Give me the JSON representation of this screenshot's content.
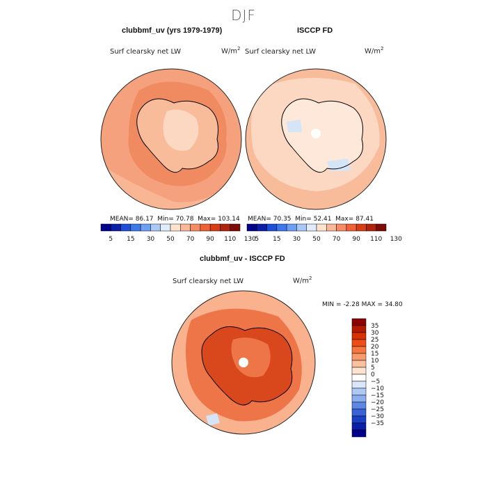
{
  "season": "DJF",
  "panels": [
    {
      "title": "clubbmf_uv (yrs 1979-1979)",
      "variable": "Surf clearsky net LW",
      "units": "W/m",
      "units_exp": "2",
      "stats": {
        "mean_label": "MEAN=",
        "mean": "86.17",
        "min_label": "Min=",
        "min": "70.78",
        "max_label": "Max=",
        "max": "103.14"
      }
    },
    {
      "title": "ISCCP FD",
      "variable": "Surf clearsky net LW",
      "units": "W/m",
      "units_exp": "2",
      "stats": {
        "mean_label": "MEAN=",
        "mean": "70.35",
        "min_label": "Min=",
        "min": "52.41",
        "max_label": "Max=",
        "max": "87.41"
      }
    }
  ],
  "shared_colorbar": {
    "colors": [
      "#00008b",
      "#0a1fa8",
      "#1e4fd6",
      "#3c78e8",
      "#6d9ff2",
      "#a9c8f5",
      "#e0ecfb",
      "#fde2cc",
      "#f9b89a",
      "#f58b64",
      "#ee6137",
      "#d73d15",
      "#b0230c",
      "#7a0b05"
    ],
    "tick_labels": [
      "5",
      "15",
      "30",
      "50",
      "70",
      "90",
      "110",
      "130"
    ]
  },
  "diff_panel": {
    "title": "clubbmf_uv - ISCCP FD",
    "variable": "Surf clearsky net LW",
    "units": "W/m",
    "units_exp": "2",
    "stats": {
      "min_label": "MIN =",
      "min": "-2.28",
      "max_label": "MAX =",
      "max": "34.80"
    }
  },
  "diff_colorbar": {
    "colors": [
      "#8b0000",
      "#b51a00",
      "#d63300",
      "#f04d14",
      "#f7763f",
      "#fa9a6a",
      "#fbc19e",
      "#fde3d0",
      "#ffffff",
      "#d9e6fb",
      "#aec8f5",
      "#8aaef0",
      "#5d86e6",
      "#3763d8",
      "#1a3fc4",
      "#0a1fa8",
      "#00008b"
    ],
    "tick_labels": [
      "35",
      "30",
      "25",
      "20",
      "15",
      "10",
      "5",
      "0",
      "−5",
      "−10",
      "−15",
      "−20",
      "−25",
      "−30",
      "−35"
    ]
  },
  "map_colors": {
    "ocean_high": "#f6a17e",
    "ocean_mid": "#f9bc9b",
    "ocean_light": "#fcd8c2",
    "land_low": "#fde8da",
    "blue_patch": "#d5e4f7",
    "diff_dark": "#d9471c",
    "diff_mid": "#ee7548",
    "diff_light": "#f9b18e",
    "coast": "#000000",
    "pole": "#ffffff"
  }
}
